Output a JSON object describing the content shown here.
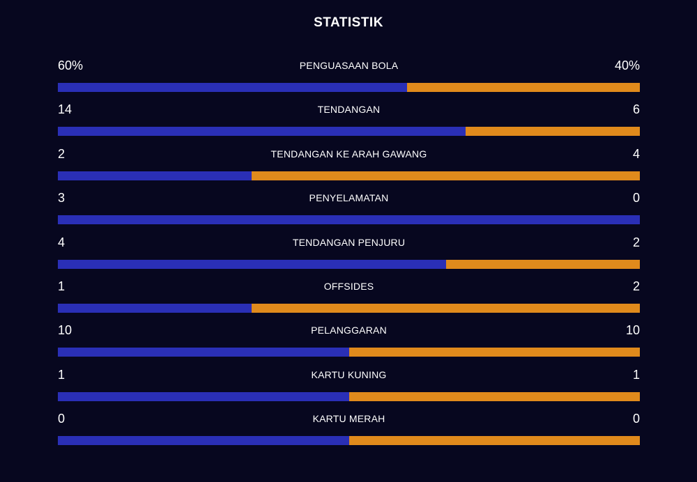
{
  "title": "STATISTIK",
  "colors": {
    "background": "#07071f",
    "home": "#2a2fb6",
    "away": "#e08a1c"
  },
  "stats": [
    {
      "label": "PENGUASAAN BOLA",
      "home": "60%",
      "away": "40%",
      "home_share": 0.6
    },
    {
      "label": "TENDANGAN",
      "home": "14",
      "away": "6",
      "home_share": 0.7
    },
    {
      "label": "TENDANGAN KE ARAH GAWANG",
      "home": "2",
      "away": "4",
      "home_share": 0.3333
    },
    {
      "label": "PENYELAMATAN",
      "home": "3",
      "away": "0",
      "home_share": 1.0
    },
    {
      "label": "TENDANGAN PENJURU",
      "home": "4",
      "away": "2",
      "home_share": 0.6667
    },
    {
      "label": "OFFSIDES",
      "home": "1",
      "away": "2",
      "home_share": 0.3333
    },
    {
      "label": "PELANGGARAN",
      "home": "10",
      "away": "10",
      "home_share": 0.5
    },
    {
      "label": "KARTU KUNING",
      "home": "1",
      "away": "1",
      "home_share": 0.5
    },
    {
      "label": "KARTU MERAH",
      "home": "0",
      "away": "0",
      "home_share": 0.5
    }
  ]
}
